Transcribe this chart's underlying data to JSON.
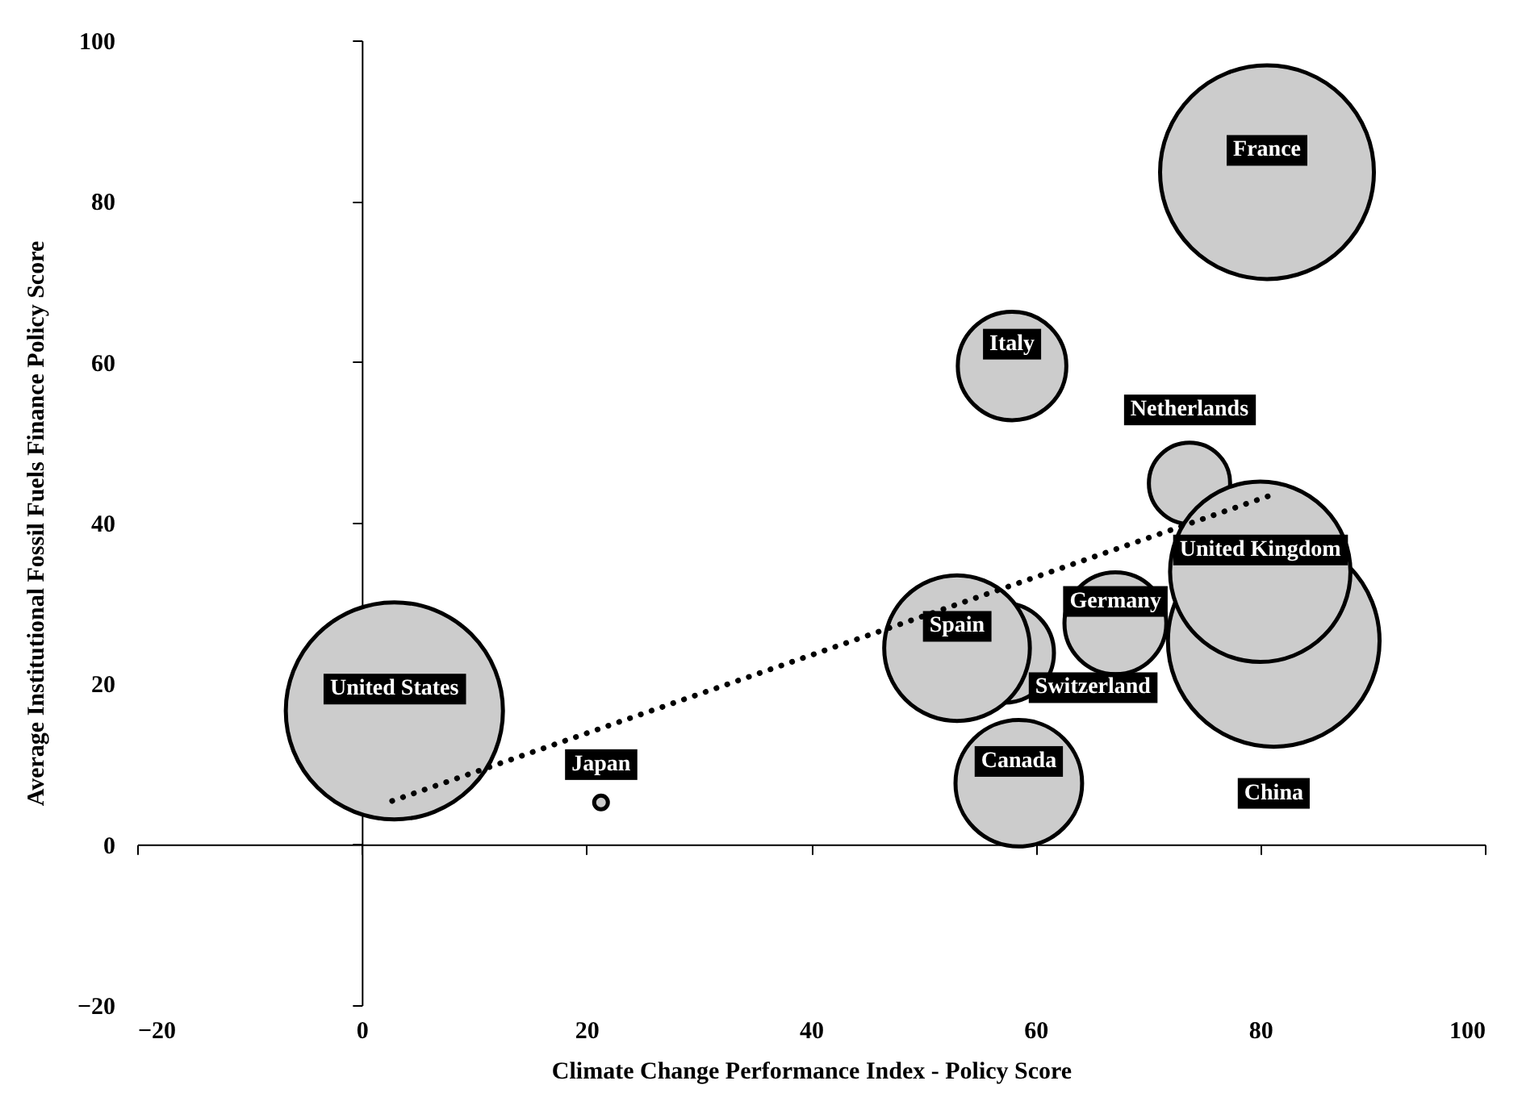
{
  "chart_data": {
    "type": "bubble",
    "xlabel": "Climate Change Performance Index - Policy Score",
    "ylabel": "Average Institutional Fossil Fuels Finance Policy Score",
    "xlim": [
      -20,
      100
    ],
    "xticks": [
      -20,
      0,
      20,
      40,
      60,
      80,
      100
    ],
    "ylim": [
      -20,
      100
    ],
    "yticks": [
      -20,
      0,
      20,
      40,
      60,
      80,
      100
    ],
    "series": [
      {
        "name": "United States",
        "color": "#cccccc",
        "x": [
          2.9
        ],
        "values": [
          16.6
        ],
        "sizes": [
          1
        ]
      },
      {
        "name": "Japan",
        "color": "#cccccc",
        "x": [
          21.3
        ],
        "values": [
          5.2
        ],
        "sizes": [
          0.004
        ]
      },
      {
        "name": "France",
        "color": "#cccccc",
        "x": [
          80.6
        ],
        "values": [
          83.6
        ],
        "sizes": [
          0.97
        ]
      },
      {
        "name": "Italy",
        "color": "#cccccc",
        "x": [
          57.9
        ],
        "values": [
          59.5
        ],
        "sizes": [
          0.25
        ]
      },
      {
        "name": "Switzerland",
        "color": "#cccccc",
        "x": [
          57.2
        ],
        "values": [
          23.8
        ],
        "sizes": [
          0.21
        ]
      },
      {
        "name": "Spain",
        "color": "#cccccc",
        "x": [
          53.0
        ],
        "values": [
          24.4
        ],
        "sizes": [
          0.45
        ]
      },
      {
        "name": "Canada",
        "color": "#cccccc",
        "x": [
          58.5
        ],
        "values": [
          7.6
        ],
        "sizes": [
          0.34
        ]
      },
      {
        "name": "Germany",
        "color": "#cccccc",
        "x": [
          67.1
        ],
        "values": [
          27.5
        ],
        "sizes": [
          0.22
        ]
      },
      {
        "name": "Netherlands",
        "color": "#cccccc",
        "x": [
          73.7
        ],
        "values": [
          44.9
        ],
        "sizes": [
          0.14
        ]
      },
      {
        "name": "China",
        "color": "#cccccc",
        "x": [
          81.2
        ],
        "values": [
          25.3
        ],
        "sizes": [
          0.95
        ]
      },
      {
        "name": "United Kingdom",
        "color": "#cccccc",
        "x": [
          80.0
        ],
        "values": [
          33.9
        ],
        "sizes": [
          0.69
        ]
      },
      {
        "type": "line",
        "color": "#000000",
        "line_style": "dotted",
        "marker": "none",
        "x": [
          2.7,
          80.7
        ],
        "values": [
          5.4,
          43.3
        ]
      }
    ]
  }
}
